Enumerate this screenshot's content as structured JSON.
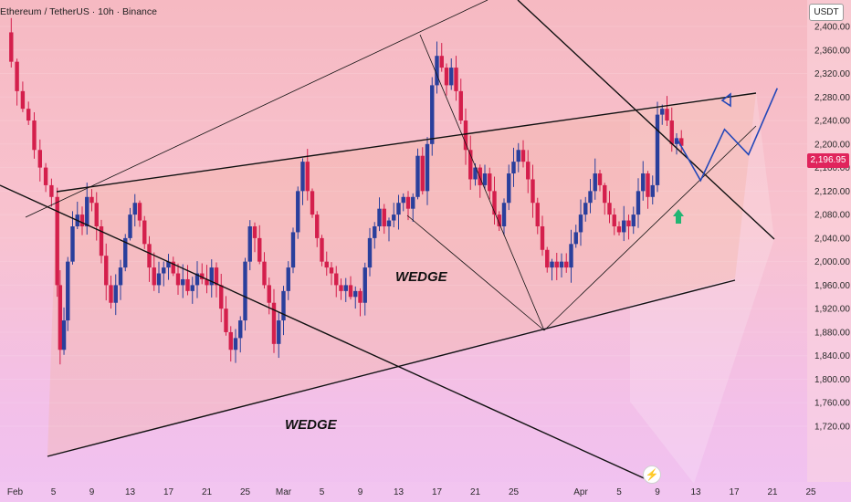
{
  "header": {
    "title": "Ethereum / TetherUS · 10h · Binance"
  },
  "currency_badge": "USDT",
  "current_price_tag": "2,196.95",
  "colors": {
    "bull": "#2a3f9c",
    "bear": "#d41f4c",
    "projection": "#2347b8",
    "up_arrow": "#22b573",
    "price_tag": "#e0245c"
  },
  "icons": {
    "flash": "lightning-icon",
    "up_arrow": "up-arrow-icon"
  },
  "chart_data": {
    "type": "candlestick",
    "symbol": "ETH/USDT",
    "timeframe": "10h",
    "exchange": "Binance",
    "ylim": [
      1710,
      2450
    ],
    "y_ticks": [
      "2,400.00",
      "2,360.00",
      "2,320.00",
      "2,280.00",
      "2,240.00",
      "2,200.00",
      "2,160.00",
      "2,120.00",
      "2,080.00",
      "2,040.00",
      "2,000.00",
      "1,960.00",
      "1,920.00",
      "1,880.00",
      "1,840.00",
      "1,800.00",
      "1,760.00",
      "1,720.00"
    ],
    "x_ticks": [
      {
        "label": "Feb",
        "day": 1
      },
      {
        "label": "5",
        "day": 5
      },
      {
        "label": "9",
        "day": 9
      },
      {
        "label": "13",
        "day": 13
      },
      {
        "label": "17",
        "day": 17
      },
      {
        "label": "21",
        "day": 21
      },
      {
        "label": "25",
        "day": 25
      },
      {
        "label": "Mar",
        "day": 29
      },
      {
        "label": "5",
        "day": 33
      },
      {
        "label": "9",
        "day": 37
      },
      {
        "label": "13",
        "day": 41
      },
      {
        "label": "17",
        "day": 45
      },
      {
        "label": "21",
        "day": 49
      },
      {
        "label": "25",
        "day": 53
      },
      {
        "label": "Apr",
        "day": 60
      },
      {
        "label": "5",
        "day": 64
      },
      {
        "label": "9",
        "day": 68
      },
      {
        "label": "13",
        "day": 72
      },
      {
        "label": "17",
        "day": 76
      },
      {
        "label": "21",
        "day": 80
      },
      {
        "label": "25",
        "day": 84
      }
    ],
    "close_path": [
      [
        0.0,
        2390
      ],
      [
        0.6,
        2340
      ],
      [
        1.2,
        2290
      ],
      [
        1.8,
        2260
      ],
      [
        2.4,
        2240
      ],
      [
        3.0,
        2190
      ],
      [
        3.6,
        2160
      ],
      [
        4.2,
        2130
      ],
      [
        4.8,
        2110
      ],
      [
        5.4,
        1960
      ],
      [
        5.7,
        1850
      ],
      [
        6.1,
        1900
      ],
      [
        6.5,
        2000
      ],
      [
        7.0,
        2060
      ],
      [
        7.5,
        2080
      ],
      [
        8.0,
        2060
      ],
      [
        8.5,
        2110
      ],
      [
        9.0,
        2100
      ],
      [
        9.5,
        2060
      ],
      [
        10.0,
        2010
      ],
      [
        10.5,
        1960
      ],
      [
        11.0,
        1930
      ],
      [
        11.5,
        1960
      ],
      [
        12.0,
        1990
      ],
      [
        12.5,
        2040
      ],
      [
        13.0,
        2080
      ],
      [
        13.5,
        2100
      ],
      [
        14.0,
        2070
      ],
      [
        14.5,
        2030
      ],
      [
        15.0,
        1990
      ],
      [
        15.5,
        1960
      ],
      [
        16.0,
        1980
      ],
      [
        16.5,
        1990
      ],
      [
        17.0,
        2000
      ],
      [
        17.5,
        1980
      ],
      [
        18.0,
        1960
      ],
      [
        18.5,
        1970
      ],
      [
        19.0,
        1950
      ],
      [
        19.5,
        1960
      ],
      [
        20.0,
        1980
      ],
      [
        20.5,
        1970
      ],
      [
        21.0,
        1960
      ],
      [
        21.5,
        1990
      ],
      [
        22.0,
        1960
      ],
      [
        22.5,
        1920
      ],
      [
        23.0,
        1880
      ],
      [
        23.5,
        1850
      ],
      [
        24.0,
        1870
      ],
      [
        24.5,
        1900
      ],
      [
        25.0,
        2000
      ],
      [
        25.5,
        2060
      ],
      [
        26.0,
        2040
      ],
      [
        26.5,
        2000
      ],
      [
        27.0,
        1960
      ],
      [
        27.5,
        1930
      ],
      [
        28.0,
        1860
      ],
      [
        28.5,
        1900
      ],
      [
        29.0,
        1950
      ],
      [
        29.5,
        1990
      ],
      [
        30.0,
        2050
      ],
      [
        30.5,
        2120
      ],
      [
        31.0,
        2170
      ],
      [
        31.5,
        2120
      ],
      [
        32.0,
        2080
      ],
      [
        32.5,
        2040
      ],
      [
        33.0,
        2000
      ],
      [
        33.5,
        1990
      ],
      [
        34.0,
        1980
      ],
      [
        34.5,
        1960
      ],
      [
        35.0,
        1950
      ],
      [
        35.5,
        1960
      ],
      [
        36.0,
        1940
      ],
      [
        36.5,
        1950
      ],
      [
        37.0,
        1930
      ],
      [
        37.5,
        1990
      ],
      [
        38.0,
        2040
      ],
      [
        38.5,
        2060
      ],
      [
        39.0,
        2090
      ],
      [
        39.5,
        2060
      ],
      [
        40.0,
        2070
      ],
      [
        40.5,
        2080
      ],
      [
        41.0,
        2100
      ],
      [
        41.5,
        2110
      ],
      [
        42.0,
        2090
      ],
      [
        42.5,
        2110
      ],
      [
        43.0,
        2180
      ],
      [
        43.5,
        2120
      ],
      [
        44.0,
        2200
      ],
      [
        44.5,
        2300
      ],
      [
        45.0,
        2350
      ],
      [
        45.5,
        2330
      ],
      [
        46.0,
        2300
      ],
      [
        46.5,
        2330
      ],
      [
        47.0,
        2290
      ],
      [
        47.5,
        2240
      ],
      [
        48.0,
        2190
      ],
      [
        48.5,
        2140
      ],
      [
        49.0,
        2160
      ],
      [
        49.5,
        2130
      ],
      [
        50.0,
        2150
      ],
      [
        50.5,
        2120
      ],
      [
        51.0,
        2080
      ],
      [
        51.5,
        2060
      ],
      [
        52.0,
        2100
      ],
      [
        52.5,
        2150
      ],
      [
        53.0,
        2170
      ],
      [
        53.5,
        2190
      ],
      [
        54.0,
        2170
      ],
      [
        54.5,
        2140
      ],
      [
        55.0,
        2100
      ],
      [
        55.5,
        2060
      ],
      [
        56.0,
        2020
      ],
      [
        56.5,
        1990
      ],
      [
        57.0,
        2000
      ],
      [
        57.5,
        1990
      ],
      [
        58.0,
        2000
      ],
      [
        58.5,
        1990
      ],
      [
        59.0,
        2030
      ],
      [
        59.5,
        2050
      ],
      [
        60.0,
        2080
      ],
      [
        60.5,
        2100
      ],
      [
        61.0,
        2120
      ],
      [
        61.5,
        2150
      ],
      [
        62.0,
        2130
      ],
      [
        62.5,
        2100
      ],
      [
        63.0,
        2080
      ],
      [
        63.5,
        2060
      ],
      [
        64.0,
        2050
      ],
      [
        64.5,
        2070
      ],
      [
        65.0,
        2060
      ],
      [
        65.5,
        2080
      ],
      [
        66.0,
        2120
      ],
      [
        66.5,
        2150
      ],
      [
        67.0,
        2110
      ],
      [
        67.5,
        2130
      ],
      [
        68.0,
        2250
      ],
      [
        68.5,
        2260
      ],
      [
        69.0,
        2240
      ],
      [
        69.5,
        2200
      ],
      [
        70.0,
        2210
      ],
      [
        70.5,
        2197
      ]
    ],
    "projection_path": [
      [
        70.0,
        2210
      ],
      [
        72.5,
        2138
      ],
      [
        75.0,
        2225
      ],
      [
        77.5,
        2182
      ],
      [
        80.5,
        2295
      ]
    ],
    "annotations": [
      "WEDGE",
      "WEDGE"
    ]
  }
}
